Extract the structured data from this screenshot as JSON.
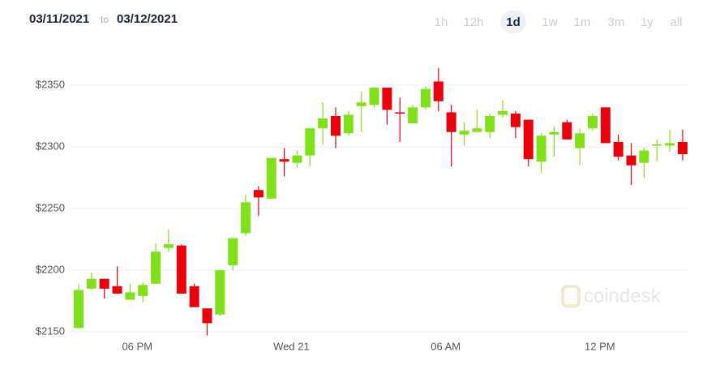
{
  "header": {
    "from": "03/11/2021",
    "to": "to",
    "until": "03/12/2021",
    "ranges": [
      "1h",
      "12h",
      "1d",
      "1w",
      "1m",
      "3m",
      "1y",
      "all"
    ],
    "active_range": "1d"
  },
  "chart_data": {
    "type": "candlestick",
    "watermark": "coindesk",
    "categories": [
      null,
      null,
      null,
      null,
      null,
      "06 PM",
      null,
      null,
      null,
      null,
      null,
      null,
      null,
      null,
      null,
      null,
      null,
      "Wed 21",
      null,
      null,
      null,
      null,
      null,
      null,
      null,
      null,
      null,
      null,
      null,
      "06 AM",
      null,
      null,
      null,
      null,
      null,
      null,
      null,
      null,
      null,
      null,
      null,
      "12 PM",
      null,
      null,
      null,
      null,
      null,
      null
    ],
    "open": [
      2153,
      2185,
      2193,
      2187,
      2176,
      2179,
      2189,
      2218,
      2220,
      2187,
      2169,
      2164,
      2204,
      2230,
      2265,
      2258,
      2290,
      2287,
      2293,
      2315,
      2325,
      2311,
      2333,
      2334,
      2348,
      2328,
      2319,
      2332,
      2353,
      2328,
      2310,
      2312,
      2312,
      2326,
      2327,
      2322,
      2288,
      2310,
      2320,
      2299,
      2315,
      2332,
      2304,
      2293,
      2287,
      2301,
      2301,
      2304
    ],
    "high": [
      2189,
      2198,
      2193,
      2203,
      2189,
      2190,
      2222,
      2233,
      2221,
      2189,
      2169,
      2200,
      2226,
      2261,
      2268,
      2291,
      2299,
      2297,
      2315,
      2336,
      2332,
      2329,
      2345,
      2348,
      2348,
      2340,
      2334,
      2349,
      2364,
      2334,
      2320,
      2330,
      2327,
      2338,
      2329,
      2322,
      2311,
      2317,
      2322,
      2315,
      2327,
      2332,
      2310,
      2303,
      2299,
      2306,
      2314,
      2314
    ],
    "low": [
      2153,
      2184,
      2177,
      2181,
      2176,
      2174,
      2189,
      2215,
      2181,
      2170,
      2147,
      2163,
      2200,
      2228,
      2244,
      2258,
      2276,
      2283,
      2284,
      2302,
      2299,
      2309,
      2312,
      2332,
      2318,
      2304,
      2319,
      2330,
      2329,
      2284,
      2301,
      2312,
      2307,
      2324,
      2307,
      2284,
      2279,
      2292,
      2306,
      2285,
      2313,
      2303,
      2289,
      2269,
      2275,
      2288,
      2296,
      2289
    ],
    "close": [
      2184,
      2193,
      2185,
      2181,
      2182,
      2188,
      2215,
      2221,
      2181,
      2170,
      2157,
      2200,
      2226,
      2255,
      2259,
      2291,
      2288,
      2293,
      2315,
      2323,
      2309,
      2326,
      2336,
      2348,
      2330,
      2327,
      2332,
      2347,
      2337,
      2312,
      2313,
      2315,
      2325,
      2329,
      2316,
      2290,
      2309,
      2312,
      2306,
      2311,
      2325,
      2303,
      2292,
      2285,
      2297,
      2302,
      2303,
      2294
    ],
    "up_color": "#80e01a",
    "down_color": "#e8000b",
    "ylim": [
      2140,
      2380
    ],
    "yticks": [
      {
        "value": 2150,
        "label": "$2150"
      },
      {
        "value": 2200,
        "label": "$2200"
      },
      {
        "value": 2250,
        "label": "$2250"
      },
      {
        "value": 2300,
        "label": "$2300"
      },
      {
        "value": 2350,
        "label": "$2350"
      }
    ],
    "grid": true
  }
}
